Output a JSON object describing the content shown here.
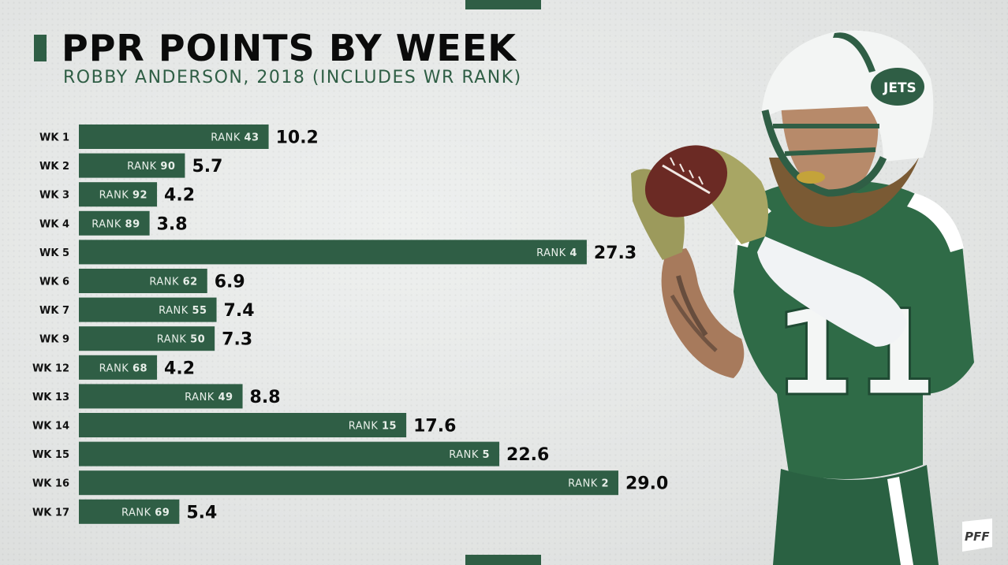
{
  "header": {
    "title": "PPR POINTS BY WEEK",
    "subtitle": "ROBBY ANDERSON, 2018 (INCLUDES WR RANK)"
  },
  "brand": {
    "logo_text": "PFF",
    "accent_color": "#2f5e45",
    "helmet_text": "JETS",
    "jersey_number": "11"
  },
  "chart_data": {
    "type": "bar",
    "orientation": "horizontal",
    "title": "PPR POINTS BY WEEK",
    "subtitle": "ROBBY ANDERSON, 2018 (INCLUDES WR RANK)",
    "rank_prefix": "RANK",
    "categories": [
      "WK 1",
      "WK 2",
      "WK 3",
      "WK 4",
      "WK 5",
      "WK 6",
      "WK 7",
      "WK 9",
      "WK 12",
      "WK 13",
      "WK 14",
      "WK 15",
      "WK 16",
      "WK 17"
    ],
    "values": [
      10.2,
      5.7,
      4.2,
      3.8,
      27.3,
      6.9,
      7.4,
      7.3,
      4.2,
      8.8,
      17.6,
      22.6,
      29.0,
      5.4
    ],
    "value_labels": [
      "10.2",
      "5.7",
      "4.2",
      "3.8",
      "27.3",
      "6.9",
      "7.4",
      "7.3",
      "4.2",
      "8.8",
      "17.6",
      "22.6",
      "29.0",
      "5.4"
    ],
    "ranks": [
      43,
      90,
      92,
      89,
      4,
      62,
      55,
      50,
      68,
      49,
      15,
      5,
      2,
      69
    ],
    "xlim": [
      0,
      29.0
    ],
    "bar_color": "#2f5e45",
    "grid": false,
    "legend": "none"
  }
}
